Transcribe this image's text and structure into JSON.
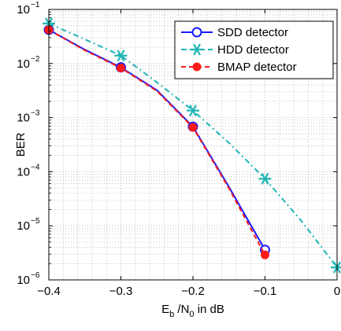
{
  "chart_data": {
    "type": "line",
    "title": "",
    "xlabel": {
      "parts": [
        "E",
        "b",
        " /N",
        "0",
        " in dB"
      ]
    },
    "ylabel": "BER",
    "x": [
      -0.4,
      -0.3,
      -0.2,
      -0.1,
      0
    ],
    "xlim": [
      -0.4,
      0
    ],
    "ylim_log10": [
      -6,
      -1
    ],
    "yscale": "log",
    "grid": true,
    "legend_position": "top-right",
    "x_tick_labels": [
      "−0.4",
      "−0.3",
      "−0.2",
      "−0.1",
      "0"
    ],
    "y_tick_labels": [
      {
        "base": "10",
        "exp": "−1"
      },
      {
        "base": "10",
        "exp": "−2"
      },
      {
        "base": "10",
        "exp": "−3"
      },
      {
        "base": "10",
        "exp": "−4"
      },
      {
        "base": "10",
        "exp": "−5"
      },
      {
        "base": "10",
        "exp": "−6"
      }
    ],
    "series": [
      {
        "name": "SDD detector",
        "color": "#1a1aff",
        "line": "solid",
        "marker": "circle",
        "points": [
          [
            -0.4,
            0.042
          ],
          [
            -0.35,
            0.018
          ],
          [
            -0.3,
            0.0085
          ],
          [
            -0.25,
            0.0032
          ],
          [
            -0.2,
            0.00068
          ],
          [
            -0.15,
            5.2e-05
          ],
          [
            -0.1,
            3.6e-06
          ]
        ]
      },
      {
        "name": "HDD detector",
        "color": "#1fb5b5",
        "line": "dashdot",
        "marker": "star",
        "points": [
          [
            -0.4,
            0.055
          ],
          [
            -0.35,
            0.028
          ],
          [
            -0.3,
            0.014
          ],
          [
            -0.25,
            0.0045
          ],
          [
            -0.2,
            0.00135
          ],
          [
            -0.15,
            0.00034
          ],
          [
            -0.1,
            7.4e-05
          ],
          [
            -0.05,
            1.25e-05
          ],
          [
            0,
            1.7e-06
          ]
        ]
      },
      {
        "name": "BMAP detector",
        "color": "#ff1a1a",
        "line": "dashed",
        "marker": "dot",
        "points": [
          [
            -0.4,
            0.042
          ],
          [
            -0.35,
            0.0175
          ],
          [
            -0.3,
            0.0083
          ],
          [
            -0.25,
            0.0031
          ],
          [
            -0.2,
            0.00066
          ],
          [
            -0.15,
            4.9e-05
          ],
          [
            -0.1,
            2.9e-06
          ]
        ]
      }
    ]
  }
}
